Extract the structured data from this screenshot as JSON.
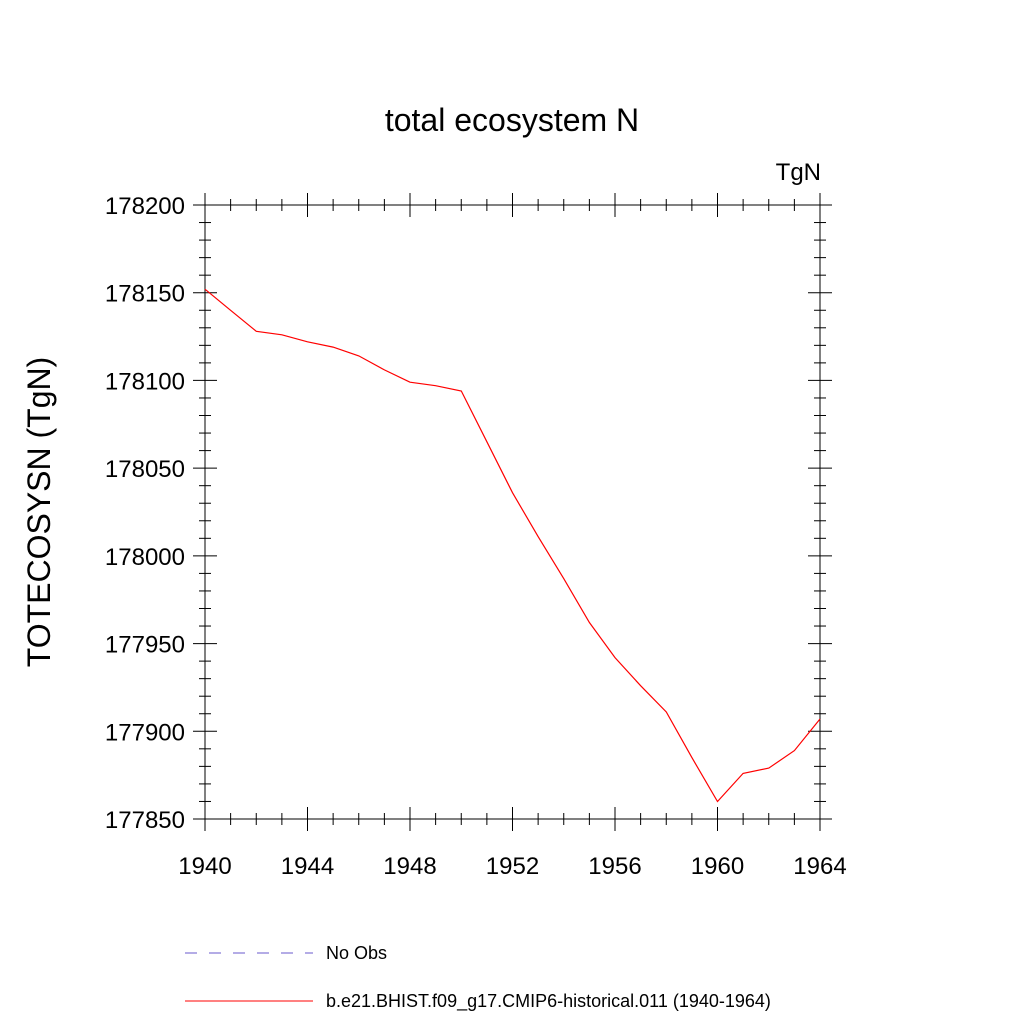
{
  "chart_data": {
    "type": "line",
    "title": "total ecosystem N",
    "units_label": "TgN",
    "xlabel": "",
    "ylabel": "TOTECOSYSN  (TgN)",
    "xlim": [
      1940,
      1964
    ],
    "ylim": [
      177850,
      178200
    ],
    "x_ticks": [
      "1940",
      "1944",
      "1948",
      "1952",
      "1956",
      "1960",
      "1964"
    ],
    "x_tick_values": [
      1940,
      1944,
      1948,
      1952,
      1956,
      1960,
      1964
    ],
    "y_ticks": [
      "178200",
      "178150",
      "178100",
      "178050",
      "178000",
      "177950",
      "177900",
      "177850"
    ],
    "y_tick_values": [
      178200,
      178150,
      178100,
      178050,
      178000,
      177950,
      177900,
      177850
    ],
    "grid": false,
    "legend_position": "bottom",
    "series": [
      {
        "name": "No Obs",
        "color": "#6a5acd",
        "dash": "dashed",
        "values": []
      },
      {
        "name": "b.e21.BHIST.f09_g17.CMIP6-historical.011 (1940-1964)",
        "color": "#ff0000",
        "dash": "solid",
        "x": [
          1940,
          1941,
          1942,
          1943,
          1944,
          1945,
          1946,
          1947,
          1948,
          1949,
          1950,
          1951,
          1952,
          1953,
          1954,
          1955,
          1956,
          1957,
          1958,
          1959,
          1960,
          1961,
          1962,
          1963,
          1964
        ],
        "values": [
          178152,
          178140,
          178128,
          178126,
          178122,
          178119,
          178114,
          178106,
          178099,
          178097,
          178094,
          178065,
          178036,
          178011,
          177987,
          177962,
          177942,
          177926,
          177911,
          177885,
          177860,
          177876,
          177879,
          177889,
          177907
        ]
      }
    ]
  }
}
